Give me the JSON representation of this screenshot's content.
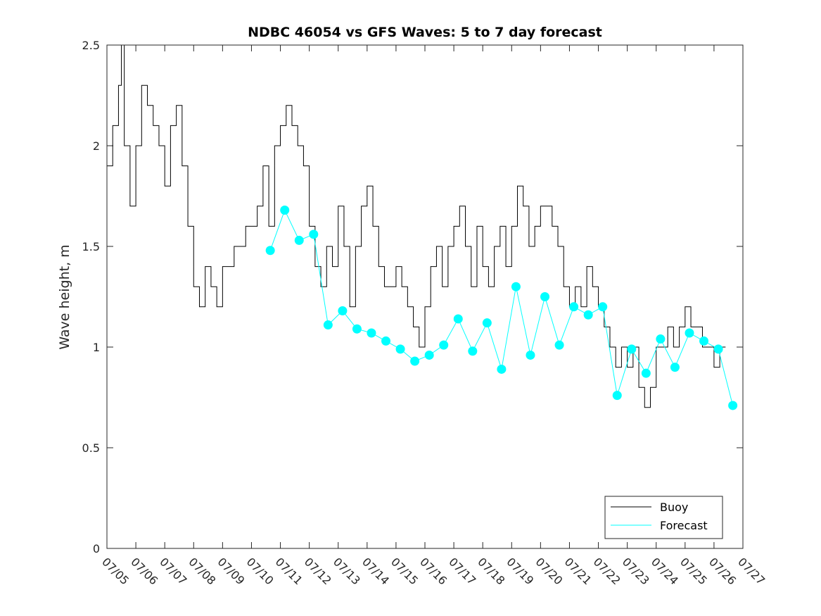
{
  "chart_data": {
    "type": "line",
    "title": "NDBC 46054 vs GFS Waves: 5 to 7 day forecast",
    "xlabel": "",
    "ylabel": "Wave height, m",
    "xlim": [
      5,
      27
    ],
    "ylim": [
      0,
      2.5
    ],
    "x_tick_labels": [
      "07/05",
      "07/06",
      "07/07",
      "07/08",
      "07/09",
      "07/10",
      "07/11",
      "07/12",
      "07/13",
      "07/14",
      "07/15",
      "07/16",
      "07/17",
      "07/18",
      "07/19",
      "07/20",
      "07/21",
      "07/22",
      "07/23",
      "07/24",
      "07/25",
      "07/26",
      "07/27"
    ],
    "y_ticks": [
      0,
      0.5,
      1,
      1.5,
      2,
      2.5
    ],
    "y_tick_labels": [
      "0",
      "0.5",
      "1",
      "1.5",
      "2",
      "2.5"
    ],
    "grid": false,
    "legend_position": "bottom-right",
    "colors": {
      "buoy": "#000000",
      "forecast": "#00ffff"
    },
    "series": [
      {
        "name": "Buoy",
        "x": [
          5.0,
          5.2,
          5.4,
          5.5,
          5.6,
          5.8,
          6.0,
          6.2,
          6.4,
          6.6,
          6.8,
          7.0,
          7.2,
          7.4,
          7.6,
          7.8,
          8.0,
          8.2,
          8.4,
          8.6,
          8.8,
          9.0,
          9.2,
          9.4,
          9.6,
          9.8,
          10.0,
          10.2,
          10.4,
          10.6,
          10.8,
          11.0,
          11.2,
          11.4,
          11.6,
          11.8,
          12.0,
          12.2,
          12.4,
          12.6,
          12.8,
          13.0,
          13.2,
          13.4,
          13.6,
          13.8,
          14.0,
          14.2,
          14.4,
          14.6,
          14.8,
          15.0,
          15.2,
          15.4,
          15.6,
          15.8,
          16.0,
          16.2,
          16.4,
          16.6,
          16.8,
          17.0,
          17.2,
          17.4,
          17.6,
          17.8,
          18.0,
          18.2,
          18.4,
          18.6,
          18.8,
          19.0,
          19.2,
          19.4,
          19.6,
          19.8,
          20.0,
          20.2,
          20.4,
          20.6,
          20.8,
          21.0,
          21.2,
          21.4,
          21.6,
          21.8,
          22.0,
          22.2,
          22.4,
          22.6,
          22.8,
          23.0,
          23.2,
          23.4,
          23.6,
          23.8,
          24.0,
          24.2,
          24.4,
          24.6,
          24.8,
          25.0,
          25.2,
          25.4,
          25.6,
          25.8,
          26.0,
          26.2
        ],
        "values": [
          1.9,
          2.1,
          2.3,
          2.5,
          2.0,
          1.7,
          2.0,
          2.3,
          2.2,
          2.1,
          2.0,
          1.8,
          2.1,
          2.2,
          1.9,
          1.6,
          1.3,
          1.2,
          1.4,
          1.3,
          1.2,
          1.4,
          1.4,
          1.5,
          1.5,
          1.6,
          1.6,
          1.7,
          1.9,
          1.6,
          2.0,
          2.1,
          2.2,
          2.1,
          2.0,
          1.9,
          1.6,
          1.4,
          1.3,
          1.5,
          1.4,
          1.7,
          1.5,
          1.2,
          1.5,
          1.7,
          1.8,
          1.6,
          1.4,
          1.3,
          1.3,
          1.4,
          1.3,
          1.2,
          1.1,
          1.0,
          1.2,
          1.4,
          1.5,
          1.3,
          1.5,
          1.6,
          1.7,
          1.5,
          1.3,
          1.6,
          1.4,
          1.3,
          1.5,
          1.6,
          1.4,
          1.6,
          1.8,
          1.7,
          1.5,
          1.6,
          1.7,
          1.7,
          1.6,
          1.5,
          1.3,
          1.2,
          1.3,
          1.2,
          1.4,
          1.3,
          1.2,
          1.1,
          1.0,
          0.9,
          1.0,
          0.9,
          1.0,
          0.8,
          0.7,
          0.8,
          1.0,
          1.0,
          1.1,
          1.0,
          1.1,
          1.2,
          1.1,
          1.1,
          1.0,
          1.0,
          0.9,
          1.0
        ]
      },
      {
        "name": "Forecast",
        "x": [
          10.65,
          11.15,
          11.65,
          12.15,
          12.65,
          13.15,
          13.65,
          14.15,
          14.65,
          15.15,
          15.65,
          16.15,
          16.65,
          17.15,
          17.65,
          18.15,
          18.65,
          19.15,
          19.65,
          20.15,
          20.65,
          21.15,
          21.65,
          22.15,
          22.65,
          23.15,
          23.65,
          24.15,
          24.65,
          25.15,
          25.65,
          26.15,
          26.65
        ],
        "values": [
          1.48,
          1.68,
          1.53,
          1.56,
          1.11,
          1.18,
          1.09,
          1.07,
          1.03,
          0.99,
          0.93,
          0.96,
          1.01,
          1.14,
          0.98,
          1.12,
          0.89,
          1.3,
          0.96,
          1.25,
          1.01,
          1.2,
          1.16,
          1.2,
          0.76,
          0.99,
          0.87,
          1.04,
          0.9,
          1.07,
          1.03,
          0.99,
          0.71
        ]
      }
    ]
  }
}
